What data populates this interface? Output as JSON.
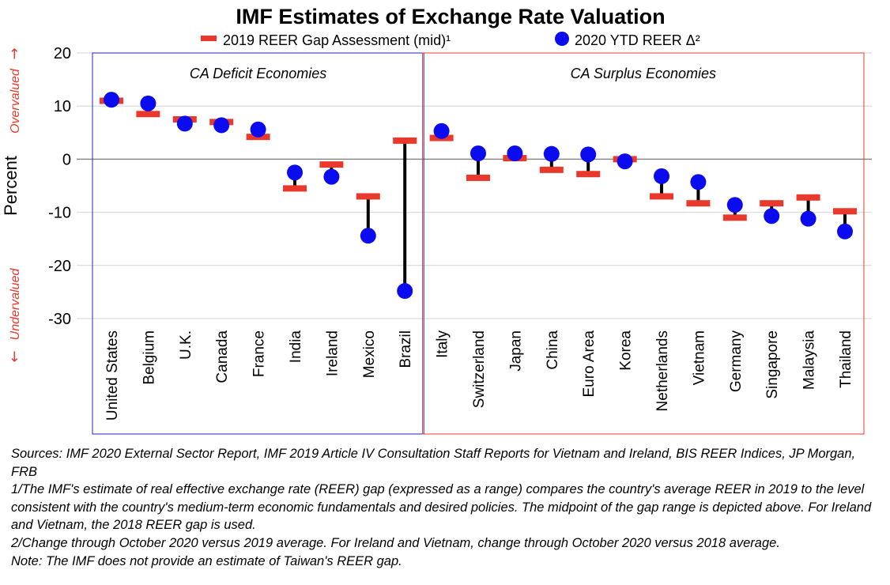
{
  "chart_data": {
    "type": "scatter",
    "title": "IMF Estimates of Exchange Rate Valuation",
    "ylabel": "Percent",
    "ylim": [
      -30,
      20
    ],
    "yticks": [
      "20",
      "10",
      "0",
      "-10",
      "-20",
      "-30"
    ],
    "overvalued_label": "Overvalued",
    "undervalued_label": "Undervalued",
    "arrow_up": "→",
    "arrow_down": "←",
    "grid": true,
    "legend_position": "top",
    "groups": [
      {
        "label": "CA Deficit Economies",
        "start": 0,
        "end": 8,
        "color": "#1f23c8"
      },
      {
        "label": "CA Surplus Economies",
        "start": 9,
        "end": 20,
        "color": "#e8392c"
      }
    ],
    "categories": [
      "United States",
      "Belgium",
      "U.K.",
      "Canada",
      "France",
      "India",
      "Ireland",
      "Mexico",
      "Brazil",
      "Italy",
      "Switzerland",
      "Japan",
      "China",
      "Euro Area",
      "Korea",
      "Netherlands",
      "Vietnam",
      "Germany",
      "Singapore",
      "Malaysia",
      "Thailand"
    ],
    "series": [
      {
        "name": "2019 REER Gap Assessment (mid)¹",
        "marker": "dash",
        "color": "#e8392c",
        "values": [
          11,
          8.5,
          7.5,
          7,
          4.2,
          -5.5,
          -1,
          -7,
          3.5,
          4,
          -3.5,
          0.2,
          -2,
          -2.8,
          0,
          -7,
          -8.3,
          -11,
          -8.3,
          -7.2,
          -9.8
        ]
      },
      {
        "name": "2020 YTD REER Δ²",
        "marker": "circle",
        "color": "#0b0bf0",
        "values": [
          11.2,
          10.5,
          6.7,
          6.4,
          5.6,
          -2.5,
          -3.3,
          -14.4,
          -24.8,
          5.3,
          1.1,
          1.1,
          1,
          0.9,
          -0.4,
          -3.2,
          -4.3,
          -8.6,
          -10.7,
          -11.2,
          -13.6
        ]
      }
    ]
  },
  "notes": [
    "Sources: IMF 2020 External Sector Report, IMF 2019 Article IV Consultation Staff Reports for Vietnam and Ireland, BIS REER Indices, JP Morgan, FRB",
    "1/The IMF's estimate of real effective exchange rate (REER) gap (expressed as a range) compares the country's average REER in  2019 to the level consistent with the country's medium-term economic fundamentals and desired policies.  The midpoint of the gap range is depicted above.  For Ireland and Vietnam, the 2018 REER gap is used.",
    "2/Change through October 2020 versus 2019 average.  For Ireland and Vietnam, change through October 2020 versus 2018 average.",
    "Note:  The IMF does not provide an estimate of Taiwan's REER gap."
  ]
}
